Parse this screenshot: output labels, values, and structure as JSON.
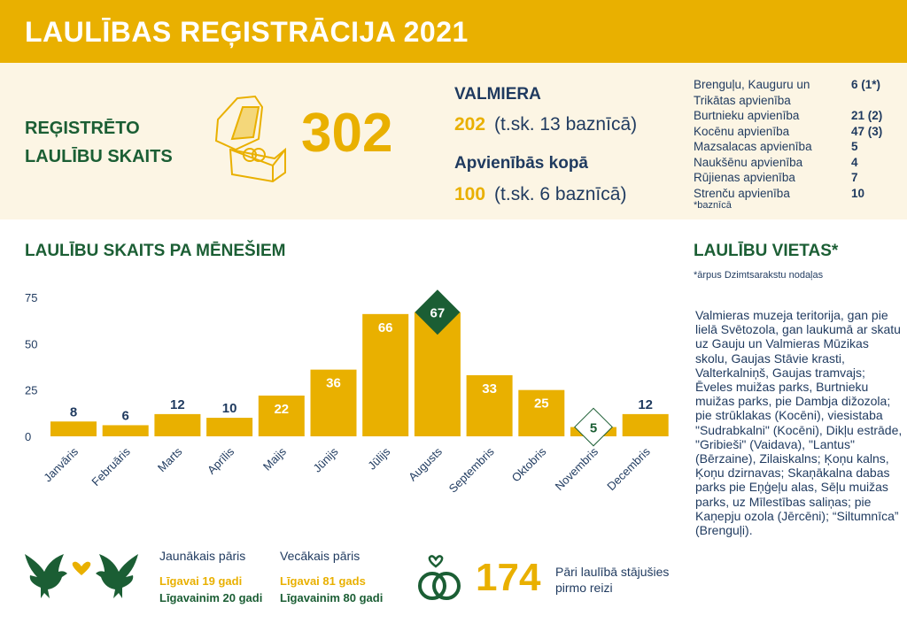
{
  "title": "LAULĪBAS REĢISTRĀCIJA 2021",
  "summary": {
    "label_line1": "REĢISTRĒTO",
    "label_line2": "LAULĪBU SKAITS",
    "total": "302"
  },
  "valmiera": {
    "title": "VALMIERA",
    "count": "202",
    "note": "(t.sk. 13 baznīcā)"
  },
  "unions": {
    "title": "Apvienībās kopā",
    "count": "100",
    "note": "(t.sk. 6 baznīcā)",
    "items": [
      {
        "name": "Brenguļu, Kauguru un",
        "value": "6 (1*)"
      },
      {
        "name": "Trikātas apvienība",
        "value": ""
      },
      {
        "name": "Burtnieku apvienība",
        "value": "21 (2)"
      },
      {
        "name": "Kocēnu apvienība",
        "value": "47 (3)"
      },
      {
        "name": "Mazsalacas apvienība",
        "value": "5"
      },
      {
        "name": "Naukšēnu apvienība",
        "value": "4"
      },
      {
        "name": "Rūjienas apvienība",
        "value": "7"
      },
      {
        "name": "Strenču apvienība",
        "value": "10"
      }
    ],
    "footnote": "*baznīcā"
  },
  "chart_data": {
    "type": "bar",
    "title": "LAULĪBU SKAITS PA MĒNEŠIEM",
    "categories": [
      "Janvāris",
      "Februāris",
      "Marts",
      "Aprīlis",
      "Maijs",
      "Jūnijs",
      "Jūlijs",
      "Augusts",
      "Septembris",
      "Oktobris",
      "Novembris",
      "Decembris"
    ],
    "values": [
      8,
      6,
      12,
      10,
      22,
      36,
      66,
      67,
      33,
      25,
      5,
      12
    ],
    "yticks": [
      0,
      25,
      50,
      75
    ],
    "ylim": [
      0,
      80
    ],
    "highlight_max": "Augusts",
    "highlight_min": "Novembris"
  },
  "places": {
    "title": "LAULĪBU VIETAS*",
    "note": "*ārpus Dzimtsarakstu nodaļas",
    "text": "Valmieras muzeja teritorija, gan pie lielā Svētozola, gan laukumā ar skatu uz Gauju un Valmieras Mūzikas skolu, Gaujas Stāvie krasti, Valterkalniņš, Gaujas tramvajs; Ēveles muižas parks, Burtnieku muižas parks, pie Dambja dižozola; pie strūklakas (Kocēni), viesistaba \"Sudrabkalni\" (Kocēni), Dikļu estrāde, \"Gribieši\" (Vaidava), \"Lantus\" (Bērzaine), Zilaiskalns; Ķoņu kalns, Ķoņu dzirnavas; Skaņākalna dabas parks pie Eņģeļu alas, Sēļu muižas parks, uz Mīlestības saliņas; pie Kaņepju ozola (Jērcēni); “Siltumnīca” (Brenguļi)."
  },
  "couples": {
    "youngest": {
      "title": "Jaunākais pāris",
      "bride": "Līgavai 19 gadi",
      "groom": "Līgavainim 20 gadi"
    },
    "oldest": {
      "title": "Vecākais pāris",
      "bride": "Līgavai 81 gads",
      "groom": "Līgavainim 80 gadi"
    }
  },
  "first": {
    "count": "174",
    "label": "Pāri laulībā stājušies pirmo reizi"
  },
  "colors": {
    "yellow": "#e9b000",
    "green": "#1b5e34",
    "navy": "#1f3a5f",
    "cream": "#fcf5e4"
  }
}
